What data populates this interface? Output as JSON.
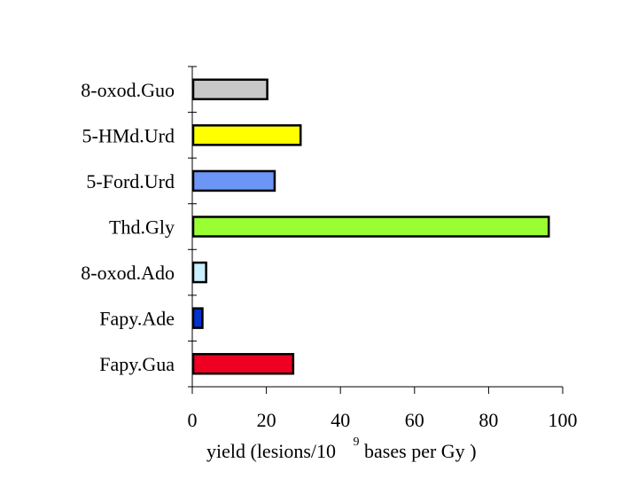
{
  "chart_data": {
    "type": "bar",
    "orientation": "horizontal",
    "categories": [
      "8-oxod.Guo",
      "5-HMd.Urd",
      "5-Ford.Urd",
      "Thd.Gly",
      "8-oxod.Ado",
      "Fapy.Ade",
      "Fapy.Gua"
    ],
    "values": [
      20,
      29,
      22,
      96,
      3.5,
      2.5,
      27
    ],
    "colors": [
      "#c8c8c8",
      "#ffff00",
      "#6b96f5",
      "#99ff33",
      "#c8f0ff",
      "#0033cc",
      "#ee0022"
    ],
    "xlim": [
      0,
      100
    ],
    "xticks": [
      0,
      20,
      40,
      60,
      80,
      100
    ],
    "xlabel": {
      "prefix": "yield (lesions/10",
      "exponent": "9",
      "suffix": " bases per Gy",
      "close": ")"
    },
    "title": "",
    "ylabel": "",
    "grid": false,
    "legend": "none"
  }
}
